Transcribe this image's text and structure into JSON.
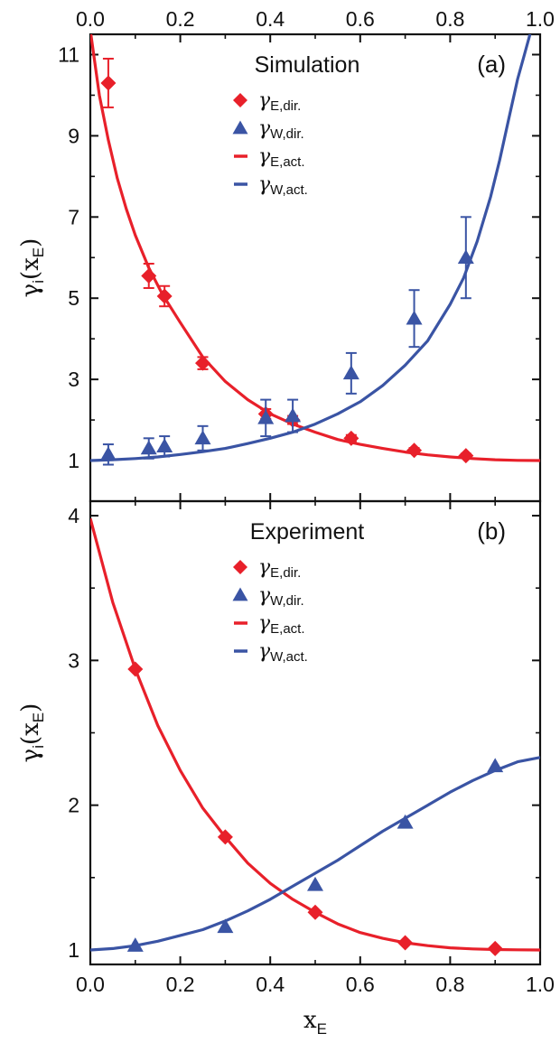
{
  "colors": {
    "red": "#e8202a",
    "blue": "#3a54a4",
    "axis": "#111111"
  },
  "chart_data": [
    {
      "type": "scatter",
      "panel_label": "(a)",
      "title": "Simulation",
      "xlabel": "x_E",
      "ylabel": "γ_i(x_E)",
      "xlim": [
        0.0,
        1.0
      ],
      "ylim": [
        0.0,
        11.5
      ],
      "x_ticks": [
        "0.0",
        "0.2",
        "0.4",
        "0.6",
        "0.8",
        "1.0"
      ],
      "y_ticks": [
        "1",
        "3",
        "5",
        "7",
        "9",
        "11"
      ],
      "y_tick_values": [
        1,
        3,
        5,
        7,
        9,
        11
      ],
      "x_tick_values": [
        0.0,
        0.2,
        0.4,
        0.6,
        0.8,
        1.0
      ],
      "legend_placement": "top-center",
      "series": [
        {
          "kind": "points",
          "marker": "diamond",
          "color": "red",
          "legend": {
            "base": "γ",
            "sub": "E,dir."
          },
          "x": [
            0.04,
            0.13,
            0.165,
            0.25,
            0.39,
            0.45,
            0.58,
            0.72,
            0.835
          ],
          "y": [
            10.3,
            5.55,
            5.05,
            3.4,
            2.15,
            2.0,
            1.55,
            1.25,
            1.12
          ],
          "err": [
            0.6,
            0.3,
            0.25,
            0.15,
            0.12,
            0.1,
            0.08,
            0.06,
            0.05
          ]
        },
        {
          "kind": "points",
          "marker": "triangle",
          "color": "blue",
          "legend": {
            "base": "γ",
            "sub": "W,dir."
          },
          "x": [
            0.04,
            0.13,
            0.165,
            0.25,
            0.39,
            0.45,
            0.58,
            0.72,
            0.835
          ],
          "y": [
            1.15,
            1.3,
            1.35,
            1.55,
            2.05,
            2.1,
            3.15,
            4.5,
            6.0
          ],
          "err": [
            0.25,
            0.25,
            0.25,
            0.3,
            0.45,
            0.4,
            0.5,
            0.7,
            1.0
          ]
        },
        {
          "kind": "curve",
          "color": "red",
          "legend": {
            "base": "γ",
            "sub": "E,act."
          },
          "x": [
            0.0,
            0.02,
            0.04,
            0.06,
            0.08,
            0.1,
            0.13,
            0.16,
            0.2,
            0.25,
            0.3,
            0.35,
            0.4,
            0.45,
            0.5,
            0.55,
            0.6,
            0.65,
            0.7,
            0.75,
            0.8,
            0.85,
            0.9,
            0.95,
            1.0
          ],
          "y": [
            11.6,
            10.0,
            8.9,
            7.95,
            7.2,
            6.55,
            5.75,
            5.1,
            4.4,
            3.55,
            2.95,
            2.5,
            2.15,
            1.9,
            1.7,
            1.52,
            1.4,
            1.3,
            1.21,
            1.14,
            1.09,
            1.05,
            1.02,
            1.005,
            1.0
          ]
        },
        {
          "kind": "curve",
          "color": "blue",
          "legend": {
            "base": "γ",
            "sub": "W,act."
          },
          "x": [
            0.0,
            0.05,
            0.1,
            0.15,
            0.2,
            0.25,
            0.3,
            0.35,
            0.4,
            0.45,
            0.5,
            0.55,
            0.6,
            0.65,
            0.7,
            0.75,
            0.8,
            0.83,
            0.86,
            0.89,
            0.91,
            0.93,
            0.95,
            0.965,
            0.98
          ],
          "y": [
            1.0,
            1.02,
            1.05,
            1.09,
            1.15,
            1.22,
            1.3,
            1.42,
            1.55,
            1.7,
            1.9,
            2.15,
            2.45,
            2.85,
            3.35,
            3.95,
            4.85,
            5.5,
            6.4,
            7.5,
            8.4,
            9.4,
            10.4,
            11.0,
            11.6
          ]
        }
      ]
    },
    {
      "type": "scatter",
      "panel_label": "(b)",
      "title": "Experiment",
      "xlabel": "x_E",
      "ylabel": "γ_i(x_E)",
      "xlim": [
        0.0,
        1.0
      ],
      "ylim": [
        0.9,
        4.1
      ],
      "x_ticks": [
        "0.0",
        "0.2",
        "0.4",
        "0.6",
        "0.8",
        "1.0"
      ],
      "y_ticks": [
        "1",
        "2",
        "3",
        "4"
      ],
      "y_tick_values": [
        1,
        2,
        3,
        4
      ],
      "x_tick_values": [
        0.0,
        0.2,
        0.4,
        0.6,
        0.8,
        1.0
      ],
      "legend_placement": "top-center",
      "series": [
        {
          "kind": "points",
          "marker": "diamond",
          "color": "red",
          "legend": {
            "base": "γ",
            "sub": "E,dir."
          },
          "x": [
            0.1,
            0.3,
            0.5,
            0.7,
            0.9
          ],
          "y": [
            2.94,
            1.78,
            1.26,
            1.05,
            1.01
          ],
          "err": []
        },
        {
          "kind": "points",
          "marker": "triangle",
          "color": "blue",
          "legend": {
            "base": "γ",
            "sub": "W,dir."
          },
          "x": [
            0.1,
            0.3,
            0.5,
            0.7,
            0.9
          ],
          "y": [
            1.03,
            1.16,
            1.45,
            1.88,
            2.27
          ],
          "err": []
        },
        {
          "kind": "curve",
          "color": "red",
          "legend": {
            "base": "γ",
            "sub": "E,act."
          },
          "x": [
            0.0,
            0.05,
            0.1,
            0.15,
            0.2,
            0.25,
            0.3,
            0.35,
            0.4,
            0.45,
            0.5,
            0.55,
            0.6,
            0.65,
            0.7,
            0.75,
            0.8,
            0.85,
            0.9,
            0.95,
            1.0
          ],
          "y": [
            3.98,
            3.4,
            2.94,
            2.55,
            2.24,
            1.98,
            1.78,
            1.6,
            1.46,
            1.35,
            1.26,
            1.18,
            1.12,
            1.08,
            1.05,
            1.03,
            1.015,
            1.007,
            1.003,
            1.001,
            1.0
          ]
        },
        {
          "kind": "curve",
          "color": "blue",
          "legend": {
            "base": "γ",
            "sub": "W,act."
          },
          "x": [
            0.0,
            0.05,
            0.1,
            0.15,
            0.2,
            0.25,
            0.3,
            0.35,
            0.4,
            0.45,
            0.5,
            0.55,
            0.6,
            0.65,
            0.7,
            0.75,
            0.8,
            0.85,
            0.9,
            0.95,
            1.0
          ],
          "y": [
            1.0,
            1.01,
            1.03,
            1.06,
            1.1,
            1.14,
            1.2,
            1.27,
            1.35,
            1.44,
            1.53,
            1.62,
            1.72,
            1.82,
            1.91,
            2.0,
            2.09,
            2.17,
            2.24,
            2.3,
            2.33
          ]
        }
      ]
    }
  ]
}
